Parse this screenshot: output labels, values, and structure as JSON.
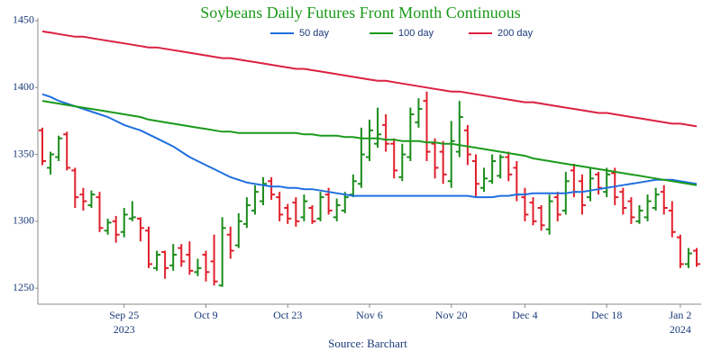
{
  "chart_data": {
    "type": "ohlc",
    "title": "Soybeans Daily Futures Front Month Continuous",
    "source": "Source: Barchart",
    "x": [
      "2023-09-11",
      "2023-09-12",
      "2023-09-13",
      "2023-09-14",
      "2023-09-15",
      "2023-09-18",
      "2023-09-19",
      "2023-09-20",
      "2023-09-21",
      "2023-09-22",
      "2023-09-25",
      "2023-09-26",
      "2023-09-27",
      "2023-09-28",
      "2023-09-29",
      "2023-10-02",
      "2023-10-03",
      "2023-10-04",
      "2023-10-05",
      "2023-10-06",
      "2023-10-09",
      "2023-10-10",
      "2023-10-11",
      "2023-10-12",
      "2023-10-13",
      "2023-10-16",
      "2023-10-17",
      "2023-10-18",
      "2023-10-19",
      "2023-10-20",
      "2023-10-23",
      "2023-10-24",
      "2023-10-25",
      "2023-10-26",
      "2023-10-27",
      "2023-10-30",
      "2023-10-31",
      "2023-11-01",
      "2023-11-02",
      "2023-11-03",
      "2023-11-06",
      "2023-11-07",
      "2023-11-08",
      "2023-11-09",
      "2023-11-10",
      "2023-11-13",
      "2023-11-14",
      "2023-11-15",
      "2023-11-16",
      "2023-11-17",
      "2023-11-20",
      "2023-11-21",
      "2023-11-22",
      "2023-11-24",
      "2023-11-27",
      "2023-11-28",
      "2023-11-29",
      "2023-11-30",
      "2023-12-01",
      "2023-12-04",
      "2023-12-05",
      "2023-12-06",
      "2023-12-07",
      "2023-12-08",
      "2023-12-11",
      "2023-12-12",
      "2023-12-13",
      "2023-12-14",
      "2023-12-15",
      "2023-12-18",
      "2023-12-19",
      "2023-12-20",
      "2023-12-21",
      "2023-12-22",
      "2023-12-26",
      "2023-12-27",
      "2023-12-28",
      "2023-12-29",
      "2024-01-02",
      "2024-01-03",
      "2024-01-04"
    ],
    "open": [
      1368,
      1340,
      1348,
      1365,
      1338,
      1320,
      1312,
      1318,
      1293,
      1300,
      1292,
      1302,
      1302,
      1293,
      1265,
      1277,
      1267,
      1280,
      1275,
      1262,
      1275,
      1270,
      1252,
      1290,
      1282,
      1298,
      1308,
      1315,
      1330,
      1318,
      1310,
      1314,
      1303,
      1310,
      1302,
      1320,
      1303,
      1308,
      1320,
      1328,
      1348,
      1358,
      1372,
      1358,
      1333,
      1348,
      1374,
      1390,
      1358,
      1352,
      1330,
      1352,
      1368,
      1345,
      1325,
      1330,
      1334,
      1348,
      1340,
      1318,
      1314,
      1310,
      1294,
      1318,
      1308,
      1338,
      1330,
      1318,
      1335,
      1322,
      1336,
      1322,
      1315,
      1300,
      1303,
      1310,
      1322,
      1308,
      1288,
      1268,
      1278
    ],
    "high": [
      1370,
      1352,
      1364,
      1367,
      1340,
      1325,
      1323,
      1322,
      1302,
      1304,
      1310,
      1315,
      1303,
      1296,
      1278,
      1278,
      1283,
      1283,
      1285,
      1272,
      1278,
      1290,
      1303,
      1296,
      1306,
      1318,
      1327,
      1333,
      1333,
      1322,
      1313,
      1318,
      1320,
      1312,
      1322,
      1325,
      1317,
      1322,
      1335,
      1370,
      1376,
      1385,
      1380,
      1362,
      1358,
      1385,
      1392,
      1397,
      1362,
      1360,
      1375,
      1390,
      1372,
      1350,
      1340,
      1350,
      1350,
      1352,
      1345,
      1325,
      1318,
      1312,
      1320,
      1322,
      1337,
      1343,
      1335,
      1340,
      1337,
      1340,
      1340,
      1325,
      1318,
      1312,
      1320,
      1325,
      1327,
      1315,
      1290,
      1280,
      1280
    ],
    "low": [
      1342,
      1335,
      1345,
      1338,
      1310,
      1308,
      1310,
      1292,
      1290,
      1284,
      1288,
      1300,
      1285,
      1265,
      1263,
      1257,
      1263,
      1266,
      1260,
      1259,
      1255,
      1252,
      1251,
      1272,
      1280,
      1295,
      1305,
      1312,
      1316,
      1300,
      1298,
      1296,
      1300,
      1298,
      1300,
      1305,
      1300,
      1306,
      1318,
      1325,
      1345,
      1355,
      1352,
      1332,
      1330,
      1345,
      1370,
      1345,
      1332,
      1328,
      1325,
      1348,
      1342,
      1318,
      1322,
      1328,
      1332,
      1330,
      1315,
      1300,
      1297,
      1293,
      1290,
      1300,
      1305,
      1318,
      1305,
      1315,
      1320,
      1318,
      1312,
      1305,
      1298,
      1298,
      1300,
      1308,
      1305,
      1288,
      1265,
      1265,
      1266
    ],
    "close": [
      1345,
      1350,
      1362,
      1340,
      1318,
      1315,
      1320,
      1295,
      1299,
      1290,
      1305,
      1303,
      1295,
      1268,
      1275,
      1265,
      1275,
      1270,
      1263,
      1265,
      1262,
      1255,
      1295,
      1278,
      1300,
      1312,
      1322,
      1328,
      1320,
      1305,
      1302,
      1300,
      1315,
      1300,
      1318,
      1308,
      1312,
      1318,
      1330,
      1350,
      1368,
      1365,
      1358,
      1338,
      1350,
      1380,
      1384,
      1352,
      1340,
      1335,
      1360,
      1378,
      1350,
      1328,
      1332,
      1345,
      1348,
      1335,
      1320,
      1305,
      1300,
      1297,
      1315,
      1305,
      1330,
      1322,
      1312,
      1332,
      1325,
      1335,
      1318,
      1310,
      1303,
      1308,
      1315,
      1320,
      1310,
      1292,
      1268,
      1276,
      1268
    ],
    "up_color": "#1c8c1c",
    "down_color": "#e0202c",
    "series": [
      {
        "name": "50 day",
        "color": "#1f6fdf",
        "values": [
          1395,
          1393,
          1390,
          1388,
          1386,
          1384,
          1382,
          1380,
          1378,
          1375,
          1372,
          1370,
          1368,
          1365,
          1362,
          1359,
          1356,
          1352,
          1348,
          1345,
          1342,
          1339,
          1336,
          1333,
          1331,
          1329,
          1328,
          1327,
          1326,
          1326,
          1325,
          1325,
          1324,
          1324,
          1323,
          1322,
          1321,
          1320,
          1319,
          1319,
          1319,
          1319,
          1319,
          1319,
          1319,
          1319,
          1319,
          1319,
          1319,
          1319,
          1319,
          1319,
          1319,
          1318,
          1318,
          1318,
          1319,
          1319,
          1320,
          1320,
          1321,
          1321,
          1321,
          1321,
          1321,
          1322,
          1322,
          1323,
          1324,
          1325,
          1326,
          1327,
          1328,
          1329,
          1330,
          1331,
          1331,
          1331,
          1330,
          1329,
          1328
        ]
      },
      {
        "name": "100 day",
        "color": "#1a9a1a",
        "values": [
          1390,
          1389,
          1388,
          1387,
          1386,
          1385,
          1384,
          1383,
          1382,
          1381,
          1380,
          1379,
          1378,
          1376,
          1375,
          1374,
          1373,
          1372,
          1371,
          1370,
          1369,
          1368,
          1367,
          1367,
          1366,
          1366,
          1366,
          1366,
          1366,
          1366,
          1366,
          1366,
          1365,
          1365,
          1364,
          1364,
          1364,
          1363,
          1363,
          1362,
          1362,
          1362,
          1361,
          1361,
          1360,
          1360,
          1360,
          1359,
          1359,
          1358,
          1358,
          1357,
          1356,
          1355,
          1354,
          1353,
          1352,
          1351,
          1350,
          1349,
          1347,
          1346,
          1345,
          1344,
          1343,
          1342,
          1341,
          1340,
          1339,
          1338,
          1337,
          1336,
          1335,
          1334,
          1333,
          1332,
          1331,
          1330,
          1329,
          1328,
          1327
        ]
      },
      {
        "name": "200 day",
        "color": "#dc2040",
        "values": [
          1442,
          1441,
          1440,
          1439,
          1438,
          1438,
          1437,
          1436,
          1435,
          1434,
          1433,
          1432,
          1431,
          1430,
          1430,
          1429,
          1428,
          1427,
          1426,
          1425,
          1424,
          1423,
          1422,
          1422,
          1421,
          1420,
          1419,
          1418,
          1417,
          1416,
          1415,
          1414,
          1414,
          1413,
          1412,
          1411,
          1410,
          1409,
          1408,
          1407,
          1406,
          1405,
          1405,
          1404,
          1403,
          1402,
          1401,
          1400,
          1399,
          1398,
          1397,
          1397,
          1396,
          1395,
          1394,
          1393,
          1392,
          1391,
          1390,
          1389,
          1389,
          1388,
          1387,
          1386,
          1385,
          1384,
          1383,
          1382,
          1381,
          1381,
          1380,
          1379,
          1378,
          1377,
          1376,
          1375,
          1374,
          1373,
          1373,
          1372,
          1371
        ]
      }
    ],
    "ylim": [
      1238,
      1452
    ],
    "yticks": [
      1250,
      1300,
      1350,
      1400,
      1450
    ],
    "xticks": [
      {
        "value": "2023-09-25",
        "label": "Sep 25",
        "sublabel": "2023"
      },
      {
        "value": "2023-10-09",
        "label": "Oct 9"
      },
      {
        "value": "2023-10-23",
        "label": "Oct 23"
      },
      {
        "value": "2023-11-06",
        "label": "Nov 6"
      },
      {
        "value": "2023-11-20",
        "label": "Nov 20"
      },
      {
        "value": "2023-12-04",
        "label": "Dec 4"
      },
      {
        "value": "2023-12-18",
        "label": "Dec 18"
      },
      {
        "value": "2024-01-02",
        "label": "Jan 2",
        "sublabel": "2024"
      }
    ]
  }
}
